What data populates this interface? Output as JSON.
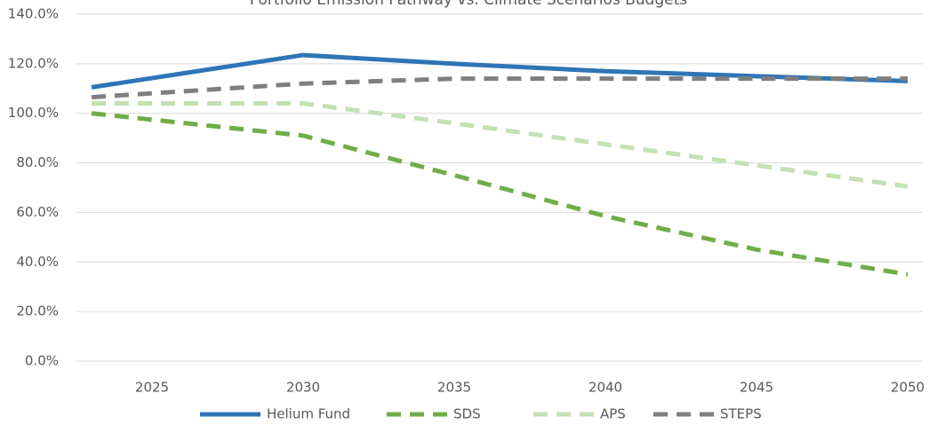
{
  "chart_data": {
    "type": "line",
    "title": "Portfolio Emission Pathway vs. Climate Scenarios Budgets",
    "x": [
      2023,
      2030,
      2035,
      2040,
      2045,
      2050
    ],
    "xlim": [
      2022.5,
      2050.5
    ],
    "xticks": [
      2025,
      2030,
      2035,
      2040,
      2045,
      2050
    ],
    "ylim": [
      0,
      140
    ],
    "yticks": [
      {
        "value": 0,
        "label": "0.0%"
      },
      {
        "value": 20,
        "label": "20.0%"
      },
      {
        "value": 40,
        "label": "40.0%"
      },
      {
        "value": 60,
        "label": "60.0%"
      },
      {
        "value": 80,
        "label": "80.0%"
      },
      {
        "value": 100,
        "label": "100.0%"
      },
      {
        "value": 120,
        "label": "120.0%"
      },
      {
        "value": 140,
        "label": "140.0%"
      }
    ],
    "grid": true,
    "legend": "bottom",
    "series": [
      {
        "name": "Helium Fund",
        "color": "#2e75b6",
        "dashed": false,
        "values": [
          110.5,
          123.5,
          120,
          117,
          115,
          113
        ]
      },
      {
        "name": "SDS",
        "color": "#70ad47",
        "dashed": true,
        "values": [
          100,
          91,
          75,
          58.5,
          45,
          35
        ]
      },
      {
        "name": "APS",
        "color": "#c5e0b4",
        "dashed": true,
        "values": [
          104,
          104,
          96,
          87.5,
          79,
          70.5
        ]
      },
      {
        "name": "STEPS",
        "color": "#7f7f7f",
        "dashed": true,
        "values": [
          106.5,
          112,
          114,
          114,
          114,
          114
        ]
      }
    ]
  }
}
